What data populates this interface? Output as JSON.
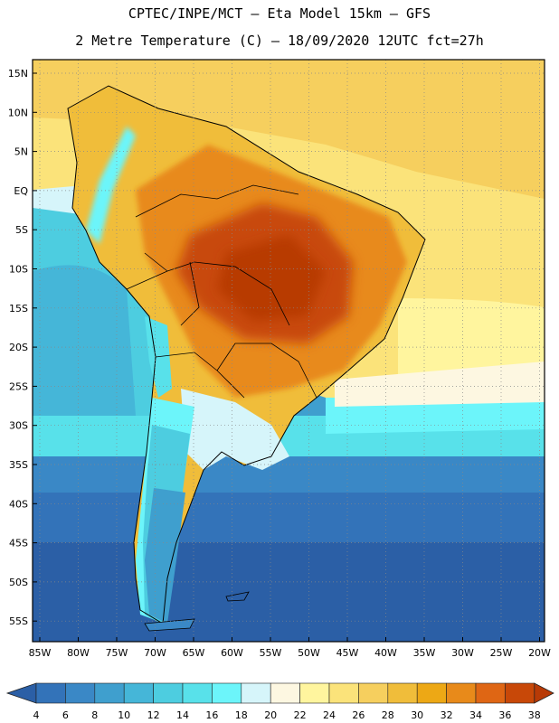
{
  "title_line1": "CPTEC/INPE/MCT –  Eta Model 15km – GFS",
  "title_line2": "2 Metre Temperature (C) – 18/09/2020 12UTC fct=27h",
  "lat_labels": [
    "15N",
    "10N",
    "5N",
    "EQ",
    "5S",
    "10S",
    "15S",
    "20S",
    "25S",
    "30S",
    "35S",
    "40S",
    "45S",
    "50S",
    "55S"
  ],
  "lon_labels": [
    "85W",
    "80W",
    "75W",
    "70W",
    "65W",
    "60W",
    "55W",
    "50W",
    "45W",
    "40W",
    "35W",
    "30W",
    "25W",
    "20W"
  ],
  "legend": {
    "ticks": [
      "4",
      "6",
      "8",
      "10",
      "12",
      "14",
      "16",
      "18",
      "20",
      "22",
      "24",
      "26",
      "28",
      "30",
      "32",
      "34",
      "36",
      "38"
    ],
    "colors": [
      "#2b5fa6",
      "#3373b9",
      "#3a88c6",
      "#3f9fce",
      "#45b6d8",
      "#4dcde0",
      "#58e1ea",
      "#6cf5fa",
      "#d6f5fa",
      "#fdf7e1",
      "#fff59e",
      "#fbe37a",
      "#f6cf5e",
      "#f0bd3a",
      "#eda815",
      "#e88a1a",
      "#df6614",
      "#c84808",
      "#b83a06"
    ]
  },
  "colors": {
    "ocean_deep": "#2b5fa6",
    "ocean_mid": "#45b6d8",
    "warm": "#f0bd3a",
    "hot": "#c84808"
  }
}
